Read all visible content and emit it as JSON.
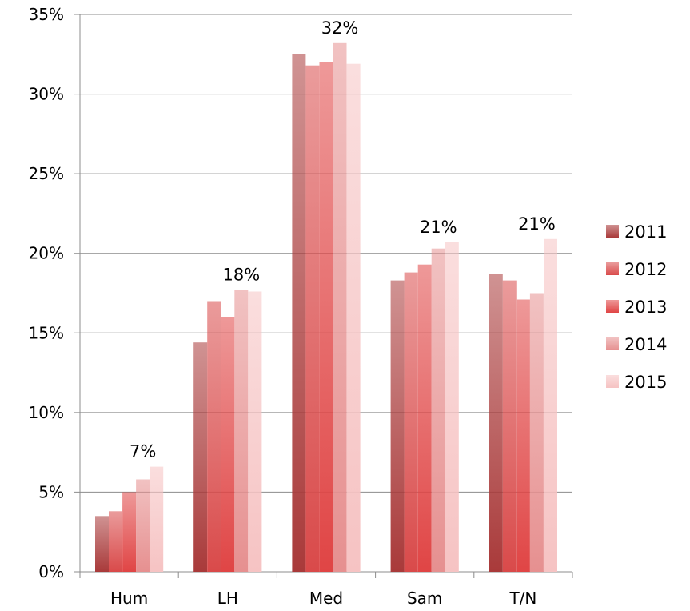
{
  "chart_data": {
    "type": "bar",
    "categories": [
      "Hum",
      "LH",
      "Med",
      "Sam",
      "T/N"
    ],
    "series": [
      {
        "name": "2011",
        "values": [
          3.5,
          14.4,
          32.5,
          18.3,
          18.7
        ],
        "color": "#a93a3a"
      },
      {
        "name": "2012",
        "values": [
          3.8,
          17.0,
          31.8,
          18.8,
          18.3
        ],
        "color": "#d94a4a"
      },
      {
        "name": "2013",
        "values": [
          5.0,
          16.0,
          32.0,
          19.3,
          17.1
        ],
        "color": "#e04545"
      },
      {
        "name": "2014",
        "values": [
          5.8,
          17.7,
          33.2,
          20.3,
          17.5
        ],
        "color": "#e69090"
      },
      {
        "name": "2015",
        "values": [
          6.6,
          17.6,
          31.9,
          20.7,
          20.9
        ],
        "color": "#f6c3c3"
      }
    ],
    "data_labels": [
      {
        "category": "Hum",
        "text": "7%"
      },
      {
        "category": "LH",
        "text": "18%"
      },
      {
        "category": "Med",
        "text": "32%"
      },
      {
        "category": "Sam",
        "text": "21%"
      },
      {
        "category": "T/N",
        "text": "21%"
      }
    ],
    "ylim": [
      0,
      35
    ],
    "ytick_step": 5,
    "ytick_suffix": "%",
    "grid": true,
    "legend_position": "right",
    "title": "",
    "xlabel": "",
    "ylabel": ""
  }
}
